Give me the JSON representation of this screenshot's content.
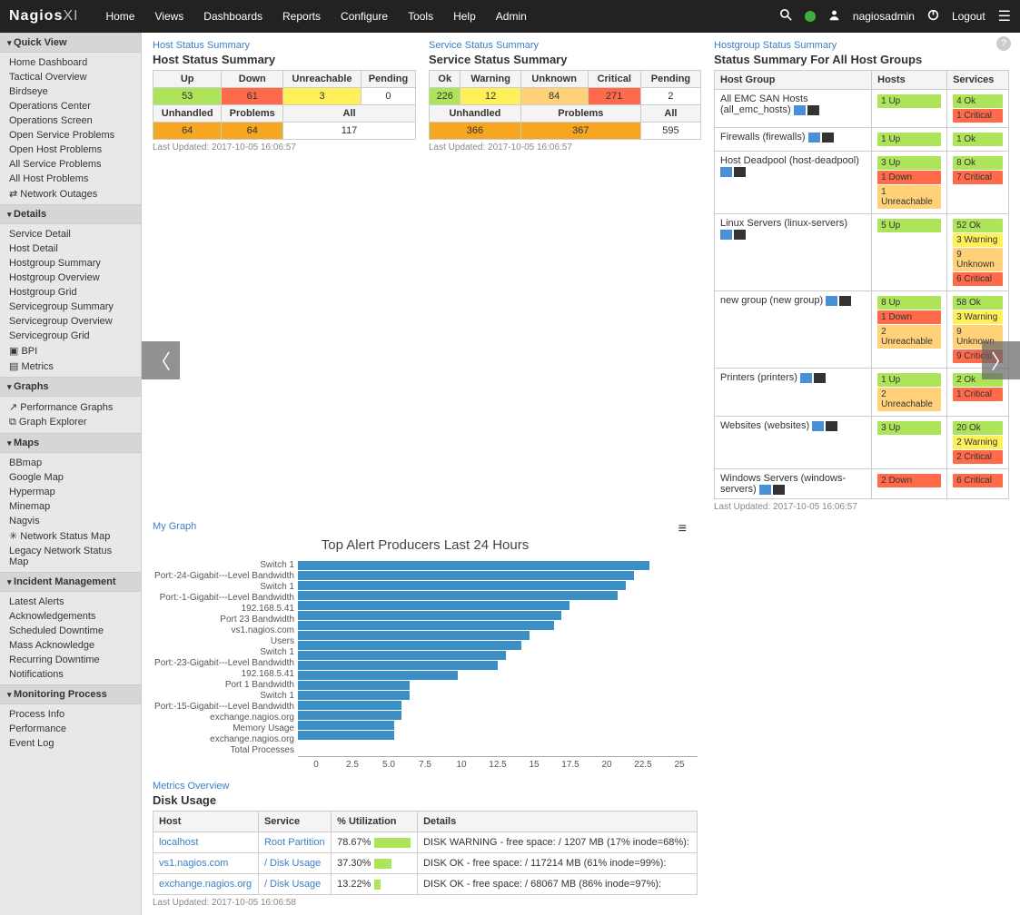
{
  "brand": {
    "name": "Nagios",
    "suffix": "XI"
  },
  "nav": {
    "items": [
      "Home",
      "Views",
      "Dashboards",
      "Reports",
      "Configure",
      "Tools",
      "Help",
      "Admin"
    ],
    "user": "nagiosadmin",
    "logout": "Logout"
  },
  "sidebar": [
    {
      "title": "Quick View",
      "items": [
        "Home Dashboard",
        "Tactical Overview",
        "Birdseye",
        "Operations Center",
        "Operations Screen",
        "Open Service Problems",
        "Open Host Problems",
        "All Service Problems",
        "All Host Problems",
        "⇄ Network Outages"
      ]
    },
    {
      "title": "Details",
      "items": [
        "Service Detail",
        "Host Detail",
        "Hostgroup Summary",
        "Hostgroup Overview",
        "Hostgroup Grid",
        "Servicegroup Summary",
        "Servicegroup Overview",
        "Servicegroup Grid",
        "▣ BPI",
        "▤ Metrics"
      ]
    },
    {
      "title": "Graphs",
      "items": [
        "↗ Performance Graphs",
        "⧉ Graph Explorer"
      ]
    },
    {
      "title": "Maps",
      "items": [
        "BBmap",
        "Google Map",
        "Hypermap",
        "Minemap",
        "Nagvis",
        "✳ Network Status Map",
        "Legacy Network Status Map"
      ]
    },
    {
      "title": "Incident Management",
      "items": [
        "Latest Alerts",
        "Acknowledgements",
        "Scheduled Downtime",
        "Mass Acknowledge",
        "Recurring Downtime",
        "Notifications"
      ]
    },
    {
      "title": "Monitoring Process",
      "items": [
        "Process Info",
        "Performance",
        "Event Log"
      ]
    }
  ],
  "hostStatus": {
    "link": "Host Status Summary",
    "title": "Host Status Summary",
    "headers": [
      "Up",
      "Down",
      "Unreachable",
      "Pending"
    ],
    "row1": [
      {
        "v": "53",
        "c": "cell-ok"
      },
      {
        "v": "61",
        "c": "cell-crit"
      },
      {
        "v": "3",
        "c": "cell-warn"
      },
      {
        "v": "0",
        "c": ""
      }
    ],
    "headers2": [
      "Unhandled",
      "Problems",
      "All"
    ],
    "row2": [
      {
        "v": "64",
        "c": "cell-orange"
      },
      {
        "v": "64",
        "c": "cell-orange"
      },
      {
        "v": "117",
        "c": ""
      }
    ],
    "ts": "Last Updated: 2017-10-05 16:06:57"
  },
  "svcStatus": {
    "link": "Service Status Summary",
    "title": "Service Status Summary",
    "headers": [
      "Ok",
      "Warning",
      "Unknown",
      "Critical",
      "Pending"
    ],
    "row1": [
      {
        "v": "226",
        "c": "cell-ok"
      },
      {
        "v": "12",
        "c": "cell-warn"
      },
      {
        "v": "84",
        "c": "cell-unk"
      },
      {
        "v": "271",
        "c": "cell-crit"
      },
      {
        "v": "2",
        "c": ""
      }
    ],
    "headers2": [
      "Unhandled",
      "Problems",
      "All"
    ],
    "row2": [
      {
        "v": "366",
        "c": "cell-orange"
      },
      {
        "v": "367",
        "c": "cell-orange"
      },
      {
        "v": "595",
        "c": ""
      }
    ],
    "ts": "Last Updated: 2017-10-05 16:06:57"
  },
  "hostgroup": {
    "link": "Hostgroup Status Summary",
    "title": "Status Summary For All Host Groups",
    "headers": [
      "Host Group",
      "Hosts",
      "Services"
    ],
    "rows": [
      {
        "name": "All EMC SAN Hosts (all_emc_hosts)",
        "hosts": [
          {
            "t": "1 Up",
            "c": "cell-ok"
          }
        ],
        "svcs": [
          {
            "t": "4 Ok",
            "c": "cell-ok"
          },
          {
            "t": "1 Critical",
            "c": "cell-crit"
          }
        ]
      },
      {
        "name": "Firewalls (firewalls)",
        "hosts": [
          {
            "t": "1 Up",
            "c": "cell-ok"
          }
        ],
        "svcs": [
          {
            "t": "1 Ok",
            "c": "cell-ok"
          }
        ]
      },
      {
        "name": "Host Deadpool (host-deadpool)",
        "hosts": [
          {
            "t": "3 Up",
            "c": "cell-ok"
          },
          {
            "t": "1 Down",
            "c": "cell-crit"
          },
          {
            "t": "1 Unreachable",
            "c": "cell-unk"
          }
        ],
        "svcs": [
          {
            "t": "8 Ok",
            "c": "cell-ok"
          },
          {
            "t": "7 Critical",
            "c": "cell-crit"
          }
        ]
      },
      {
        "name": "Linux Servers (linux-servers)",
        "hosts": [
          {
            "t": "5 Up",
            "c": "cell-ok"
          }
        ],
        "svcs": [
          {
            "t": "52 Ok",
            "c": "cell-ok"
          },
          {
            "t": "3 Warning",
            "c": "cell-warn"
          },
          {
            "t": "9 Unknown",
            "c": "cell-unk"
          },
          {
            "t": "6 Critical",
            "c": "cell-crit"
          }
        ]
      },
      {
        "name": "new group (new group)",
        "hosts": [
          {
            "t": "8 Up",
            "c": "cell-ok"
          },
          {
            "t": "1 Down",
            "c": "cell-crit"
          },
          {
            "t": "2 Unreachable",
            "c": "cell-unk"
          }
        ],
        "svcs": [
          {
            "t": "58 Ok",
            "c": "cell-ok"
          },
          {
            "t": "3 Warning",
            "c": "cell-warn"
          },
          {
            "t": "9 Unknown",
            "c": "cell-unk"
          },
          {
            "t": "9 Critical",
            "c": "cell-crit"
          }
        ]
      },
      {
        "name": "Printers (printers)",
        "hosts": [
          {
            "t": "1 Up",
            "c": "cell-ok"
          },
          {
            "t": "2 Unreachable",
            "c": "cell-unk"
          }
        ],
        "svcs": [
          {
            "t": "2 Ok",
            "c": "cell-ok"
          },
          {
            "t": "1 Critical",
            "c": "cell-crit"
          }
        ]
      },
      {
        "name": "Websites (websites)",
        "hosts": [
          {
            "t": "3 Up",
            "c": "cell-ok"
          }
        ],
        "svcs": [
          {
            "t": "20 Ok",
            "c": "cell-ok"
          },
          {
            "t": "2 Warning",
            "c": "cell-warn"
          },
          {
            "t": "2 Critical",
            "c": "cell-crit"
          }
        ]
      },
      {
        "name": "Windows Servers (windows-servers)",
        "hosts": [
          {
            "t": "2 Down",
            "c": "cell-crit"
          }
        ],
        "svcs": [
          {
            "t": "6 Critical",
            "c": "cell-crit"
          }
        ]
      }
    ],
    "ts": "Last Updated: 2017-10-05 16:06:57"
  },
  "chart": {
    "link": "My Graph",
    "title": "Top Alert Producers Last 24 Hours",
    "bar_color": "#3b8fc4",
    "xmax": 25,
    "xticks": [
      "0",
      "2.5",
      "5.0",
      "7.5",
      "10",
      "12.5",
      "15",
      "17.5",
      "20",
      "22.5",
      "25"
    ],
    "series": [
      {
        "label": "Switch 1",
        "v": 22
      },
      {
        "label": "Port:-24-Gigabit---Level Bandwidth",
        "v": 21
      },
      {
        "label": "Switch 1",
        "v": 20.5
      },
      {
        "label": "Port:-1-Gigabit---Level Bandwidth",
        "v": 20
      },
      {
        "label": "192.168.5.41",
        "v": 17
      },
      {
        "label": "Port 23 Bandwidth",
        "v": 16.5
      },
      {
        "label": "vs1.nagios.com",
        "v": 16
      },
      {
        "label": "Users",
        "v": 14.5
      },
      {
        "label": "Switch 1",
        "v": 14
      },
      {
        "label": "Port:-23-Gigabit---Level Bandwidth",
        "v": 13
      },
      {
        "label": "192.168.5.41",
        "v": 12.5
      },
      {
        "label": "Port 1 Bandwidth",
        "v": 10
      },
      {
        "label": "Switch 1",
        "v": 7
      },
      {
        "label": "Port:-15-Gigabit---Level Bandwidth",
        "v": 7
      },
      {
        "label": "exchange.nagios.org",
        "v": 6.5
      },
      {
        "label": "Memory Usage",
        "v": 6.5
      },
      {
        "label": "exchange.nagios.org",
        "v": 6
      },
      {
        "label": "Total Processes",
        "v": 6
      }
    ]
  },
  "disk": {
    "link": "Metrics Overview",
    "title": "Disk Usage",
    "headers": [
      "Host",
      "Service",
      "% Utilization",
      "Details"
    ],
    "rows": [
      {
        "host": "localhost",
        "svc": "Root Partition",
        "util": "78.67%",
        "uw": 40,
        "details": "DISK WARNING - free space: / 1207 MB (17% inode=68%):"
      },
      {
        "host": "vs1.nagios.com",
        "svc": "/ Disk Usage",
        "util": "37.30%",
        "uw": 19,
        "details": "DISK OK - free space: / 117214 MB (61% inode=99%):"
      },
      {
        "host": "exchange.nagios.org",
        "svc": "/ Disk Usage",
        "util": "13.22%",
        "uw": 7,
        "details": "DISK OK - free space: / 68067 MB (86% inode=97%):"
      }
    ],
    "ts": "Last Updated: 2017-10-05 16:06:58"
  }
}
